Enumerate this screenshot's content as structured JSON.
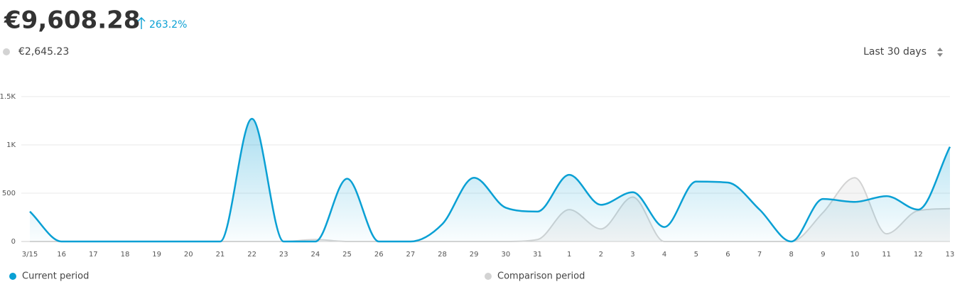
{
  "chart_data": {
    "type": "line",
    "title": "€9,608.28",
    "change": "263.2%",
    "comparison_total": "€2,645.23",
    "period": "Last 30 days",
    "categories": [
      "3/15",
      "16",
      "17",
      "18",
      "19",
      "20",
      "21",
      "22",
      "23",
      "24",
      "25",
      "26",
      "27",
      "28",
      "29",
      "30",
      "31",
      "1",
      "2",
      "3",
      "4",
      "5",
      "6",
      "7",
      "8",
      "9",
      "10",
      "11",
      "12",
      "13"
    ],
    "series": [
      {
        "name": "Current period",
        "color": "#0aa0d4",
        "values": [
          310,
          0,
          0,
          0,
          0,
          0,
          0,
          1270,
          0,
          0,
          650,
          0,
          0,
          180,
          660,
          350,
          310,
          690,
          380,
          510,
          150,
          620,
          610,
          330,
          0,
          440,
          410,
          470,
          330,
          980
        ]
      },
      {
        "name": "Comparison period",
        "color": "#d3d3d3",
        "values": [
          0,
          0,
          0,
          0,
          0,
          0,
          0,
          0,
          0,
          20,
          0,
          0,
          0,
          0,
          0,
          0,
          20,
          330,
          130,
          460,
          0,
          0,
          0,
          0,
          0,
          300,
          660,
          80,
          320,
          340
        ]
      }
    ],
    "ylim": [
      0,
      1500
    ],
    "yticks": [
      0,
      500,
      {
        "value": 1000,
        "label": "1K"
      },
      {
        "value": 1500,
        "label": "1.5K"
      }
    ],
    "grid": true
  }
}
